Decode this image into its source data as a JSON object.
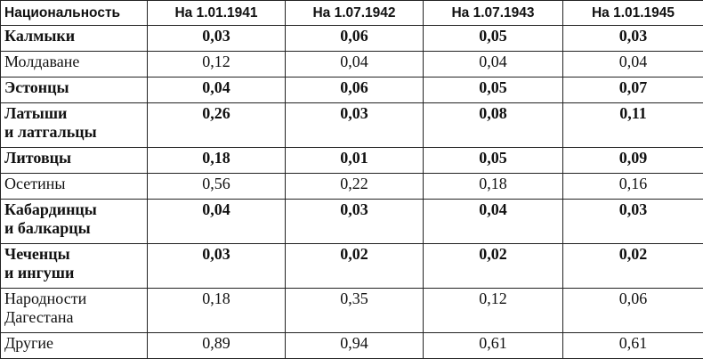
{
  "table": {
    "header": [
      "Национальность",
      "На 1.01.1941",
      "На 1.07.1942",
      "На 1.07.1943",
      "На 1.01.1945"
    ],
    "rows": [
      {
        "name": [
          "Калмыки"
        ],
        "bold": true,
        "values": [
          "0,03",
          "0,06",
          "0,05",
          "0,03"
        ]
      },
      {
        "name": [
          "Молдаване"
        ],
        "bold": false,
        "values": [
          "0,12",
          "0,04",
          "0,04",
          "0,04"
        ]
      },
      {
        "name": [
          "Эстонцы"
        ],
        "bold": true,
        "values": [
          "0,04",
          "0,06",
          "0,05",
          "0,07"
        ]
      },
      {
        "name": [
          "Латыши",
          "и латгальцы"
        ],
        "bold": true,
        "values": [
          "0,26",
          "0,03",
          "0,08",
          "0,11"
        ]
      },
      {
        "name": [
          "Литовцы"
        ],
        "bold": true,
        "values": [
          "0,18",
          "0,01",
          "0,05",
          "0,09"
        ]
      },
      {
        "name": [
          "Осетины"
        ],
        "bold": false,
        "values": [
          "0,56",
          "0,22",
          "0,18",
          "0,16"
        ]
      },
      {
        "name": [
          "Кабардинцы",
          "и балкарцы"
        ],
        "bold": true,
        "values": [
          "0,04",
          "0,03",
          "0,04",
          "0,03"
        ]
      },
      {
        "name": [
          "Чеченцы",
          "и ингуши"
        ],
        "bold": true,
        "values": [
          "0,03",
          "0,02",
          "0,02",
          "0,02"
        ]
      },
      {
        "name": [
          "Народности",
          "Дагестана"
        ],
        "bold": false,
        "values": [
          "0,18",
          "0,35",
          "0,12",
          "0,06"
        ]
      },
      {
        "name": [
          "Другие"
        ],
        "bold": false,
        "values": [
          "0,89",
          "0,94",
          "0,61",
          "0,61"
        ]
      }
    ]
  }
}
